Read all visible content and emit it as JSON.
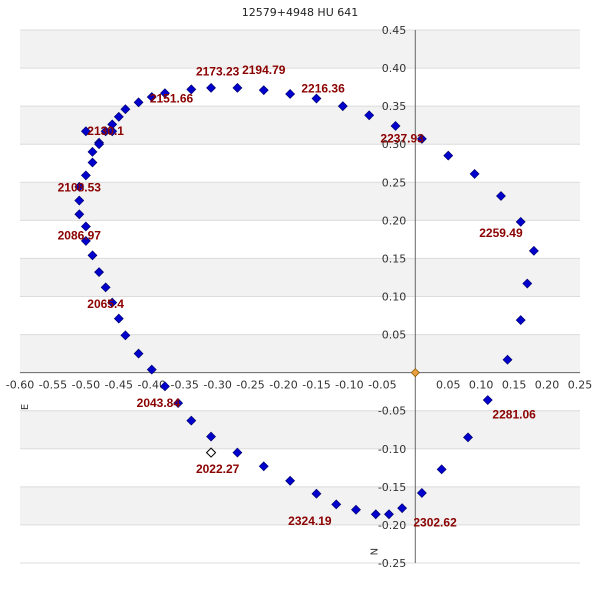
{
  "chart_data": {
    "type": "scatter",
    "title": "12579+4948 HU  641",
    "xlim": [
      -0.6,
      0.25
    ],
    "ylim": [
      -0.25,
      0.45
    ],
    "x_ticks": [
      -0.6,
      -0.55,
      -0.5,
      -0.45,
      -0.4,
      -0.35,
      -0.3,
      -0.25,
      -0.2,
      -0.15,
      -0.1,
      -0.05,
      0.05,
      0.1,
      0.15,
      0.2,
      0.25
    ],
    "x_tick_labels": [
      "-0.60",
      "-0.55",
      "-0.50",
      "-0.45",
      "-0.40",
      "-0.35",
      "-0.30",
      "-0.25",
      "-0.20",
      "-0.15",
      "-0.10",
      "-0.05",
      "0.05",
      "0.10",
      "0.15",
      "0.20",
      "0.25"
    ],
    "y_ticks": [
      0.45,
      0.4,
      0.35,
      0.3,
      0.25,
      0.2,
      0.15,
      0.1,
      0.05,
      -0.05,
      -0.1,
      -0.15,
      -0.2,
      -0.25
    ],
    "y_tick_labels": [
      "0.45",
      "0.40",
      "0.35",
      "0.30",
      "0.25",
      "0.20",
      "0.15",
      "0.10",
      "0.05",
      "-0.05",
      "-0.10",
      "-0.15",
      "-0.20",
      "-0.25"
    ],
    "grid": true,
    "direction_labels": {
      "east": "E",
      "north": "N"
    },
    "colors": {
      "points": "#0000cc",
      "labels": "#8b0000",
      "origin": "#e8a040",
      "band": "#f2f2f2",
      "axis": "#666666"
    },
    "series": [
      {
        "x": [
          -0.46,
          -0.48,
          -0.49,
          -0.5,
          -0.51,
          -0.51,
          -0.51,
          -0.5,
          -0.5,
          -0.49,
          -0.48,
          -0.47,
          -0.46,
          -0.45,
          -0.44,
          -0.42,
          -0.4,
          -0.38,
          -0.36,
          -0.34,
          -0.31,
          -0.27,
          -0.23,
          -0.19,
          -0.15,
          -0.12,
          -0.09,
          -0.06,
          -0.04,
          -0.02,
          0.01,
          0.04,
          0.08,
          0.11,
          0.14,
          0.16,
          0.17,
          0.18,
          0.16,
          0.13,
          0.09,
          0.05,
          0.01,
          -0.03,
          -0.07,
          -0.11,
          -0.15,
          -0.19,
          -0.23,
          -0.27,
          -0.31,
          -0.34,
          -0.38,
          -0.4,
          -0.42,
          -0.44,
          -0.45,
          -0.46,
          -0.47,
          -0.48,
          -0.49,
          -0.5
        ],
        "y": [
          0.317,
          0.302,
          0.276,
          0.259,
          0.244,
          0.226,
          0.208,
          0.192,
          0.173,
          0.154,
          0.132,
          0.112,
          0.092,
          0.071,
          0.049,
          0.025,
          0.004,
          -0.018,
          -0.04,
          -0.063,
          -0.084,
          -0.105,
          -0.123,
          -0.142,
          -0.159,
          -0.173,
          -0.18,
          -0.186,
          -0.186,
          -0.178,
          -0.158,
          -0.127,
          -0.085,
          -0.036,
          0.017,
          0.069,
          0.117,
          0.16,
          0.198,
          0.232,
          0.261,
          0.285,
          0.307,
          0.324,
          0.338,
          0.35,
          0.36,
          0.366,
          0.371,
          0.374,
          0.374,
          0.372,
          0.367,
          0.362,
          0.355,
          0.346,
          0.336,
          0.326,
          0.317,
          0.3,
          0.29,
          0.317
        ]
      }
    ],
    "point_labels": [
      {
        "text": "2173.23",
        "x": -0.3,
        "y": 0.39
      },
      {
        "text": "2194.79",
        "x": -0.23,
        "y": 0.392
      },
      {
        "text": "2151.66",
        "x": -0.37,
        "y": 0.355
      },
      {
        "text": "2216.36",
        "x": -0.14,
        "y": 0.368
      },
      {
        "text": "2130.1",
        "x": -0.47,
        "y": 0.312
      },
      {
        "text": "2237.93",
        "x": -0.02,
        "y": 0.302
      },
      {
        "text": "2108.53",
        "x": -0.51,
        "y": 0.238
      },
      {
        "text": "2086.97",
        "x": -0.51,
        "y": 0.175
      },
      {
        "text": "2259.49",
        "x": 0.13,
        "y": 0.178
      },
      {
        "text": "2065.4",
        "x": -0.47,
        "y": 0.085
      },
      {
        "text": "2043.84",
        "x": -0.39,
        "y": -0.045
      },
      {
        "text": "2281.06",
        "x": 0.15,
        "y": -0.06
      },
      {
        "text": "2022.27",
        "x": -0.3,
        "y": -0.132
      },
      {
        "text": "2324.19",
        "x": -0.16,
        "y": -0.2
      },
      {
        "text": "2302.62",
        "x": 0.03,
        "y": -0.202
      }
    ],
    "open_marker": {
      "x": -0.31,
      "y": -0.105
    },
    "origin_marker": {
      "x": 0.0,
      "y": 0.0
    }
  }
}
